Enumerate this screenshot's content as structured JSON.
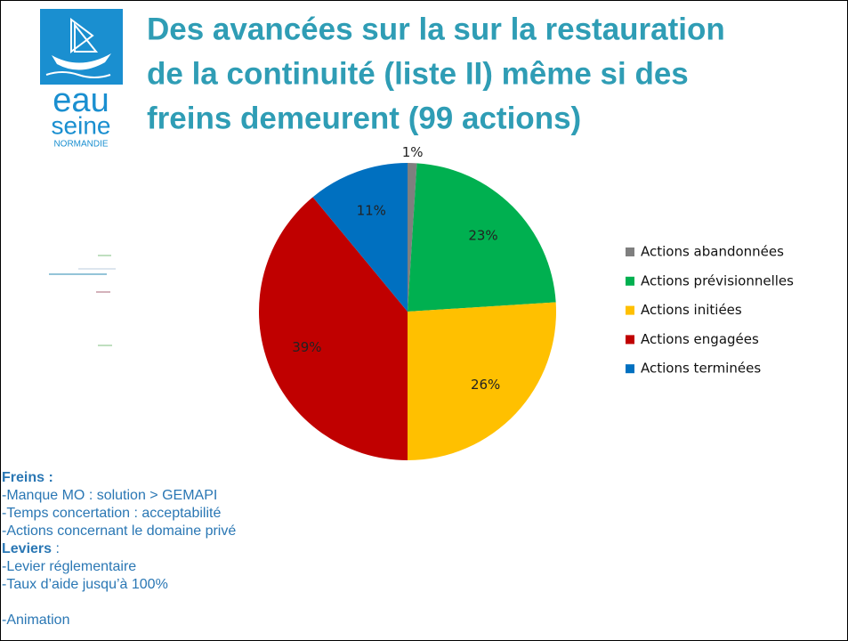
{
  "header": {
    "title": [
      "Des avancées sur la sur la restauration",
      "de la continuité (liste II) même si des",
      "freins demeurent (99 actions)"
    ],
    "logo": [
      "eau",
      "seine",
      "NORMANDIE"
    ]
  },
  "chart_data": {
    "type": "pie",
    "categories": [
      "Actions abandonnées",
      "Actions prévisionnelles",
      "Actions initiées",
      "Actions engagées",
      "Actions terminées"
    ],
    "values": [
      1,
      23,
      26,
      39,
      11
    ],
    "value_labels": [
      "1%",
      "23%",
      "26%",
      "39%",
      "11%"
    ],
    "colors": [
      "#7f7f7f",
      "#00b050",
      "#ffc000",
      "#c00000",
      "#0070c0"
    ],
    "legend": "right"
  },
  "notes": {
    "freins": {
      "label": "Freins :",
      "items": [
        "-Manque MO : solution > GEMAPI",
        "-Temps concertation : acceptabilité",
        "-Actions concernant le domaine privé"
      ]
    },
    "leviers": {
      "label": "Leviers",
      "colon": " :",
      "items": [
        "-Levier réglementaire",
        "-Taux d’aide jusqu’à 100%",
        "-Animation"
      ]
    }
  }
}
